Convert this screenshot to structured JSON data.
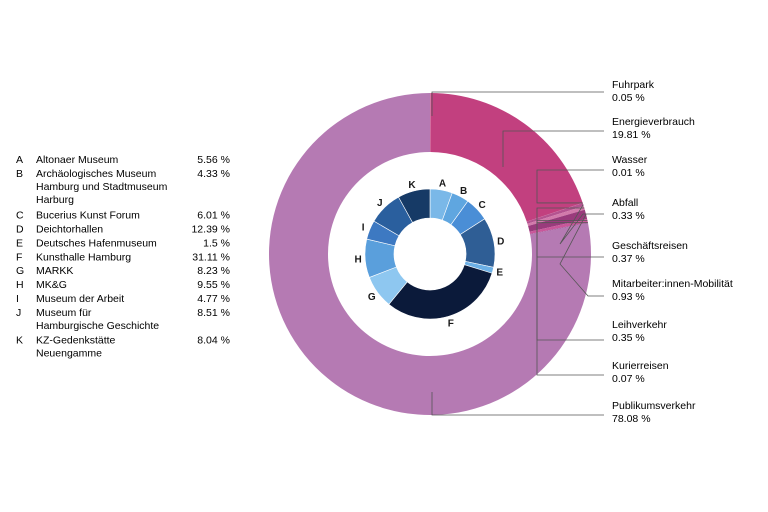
{
  "colors": {
    "outer": [
      "#e8b0cf",
      "#c2407f",
      "#e590b8",
      "#b45390",
      "#d27aab",
      "#9a3b7c",
      "#c9579a",
      "#a05a9a",
      "#b57ab3",
      "#8a5ca6"
    ],
    "inner": [
      "#7ab8e8",
      "#5fa6e0",
      "#4a8ed6",
      "#2f5e95",
      "#6cb0e6",
      "#0b1a3a",
      "#8ec7f0",
      "#5a9fdc",
      "#3d79c2",
      "#2a5f9e",
      "#163a66"
    ],
    "ring_gap": "#ffffff",
    "leader": "#555555"
  },
  "chart_data": [
    {
      "type": "pie",
      "ring": "outer",
      "categories": [
        "Fuhrpark",
        "Energieverbrauch",
        "Wasser",
        "Abfall",
        "Geschäftsreisen",
        "Mitarbeiter:innen-Mobilität",
        "Leihverkehr",
        "Kurierreisen",
        "Publikumsverkehr"
      ],
      "values": [
        0.05,
        19.81,
        0.01,
        0.33,
        0.37,
        0.93,
        0.35,
        0.07,
        78.08
      ],
      "value_labels": [
        "0.05 %",
        "19.81 %",
        "0.01 %",
        "0.33 %",
        "0.37 %",
        "0.93 %",
        "0.35 %",
        "0.07 %",
        "78.08 %"
      ]
    },
    {
      "type": "pie",
      "ring": "inner",
      "categories": [
        "A",
        "B",
        "C",
        "D",
        "E",
        "F",
        "G",
        "H",
        "I",
        "J",
        "K"
      ],
      "names": [
        "Altonaer Museum",
        "Archäologisches Museum\nHamburg und Stadtmuseum\nHarburg",
        "Bucerius Kunst Forum",
        "Deichtorhallen",
        "Deutsches Hafenmuseum",
        "Kunsthalle Hamburg",
        "MARKK",
        "MK&G",
        "Museum der Arbeit",
        "Museum für\nHamburgische Geschichte",
        "KZ-Gedenkstätte\nNeuengamme"
      ],
      "values": [
        5.56,
        4.33,
        6.01,
        12.39,
        1.5,
        31.11,
        8.23,
        9.55,
        4.77,
        8.51,
        8.04
      ],
      "value_labels": [
        "5.56 %",
        "4.33 %",
        "6.01 %",
        "12.39 %",
        "1.5 %",
        "31.11 %",
        "8.23 %",
        "9.55 %",
        "4.77 %",
        "8.51 %",
        "8.04 %"
      ]
    }
  ]
}
